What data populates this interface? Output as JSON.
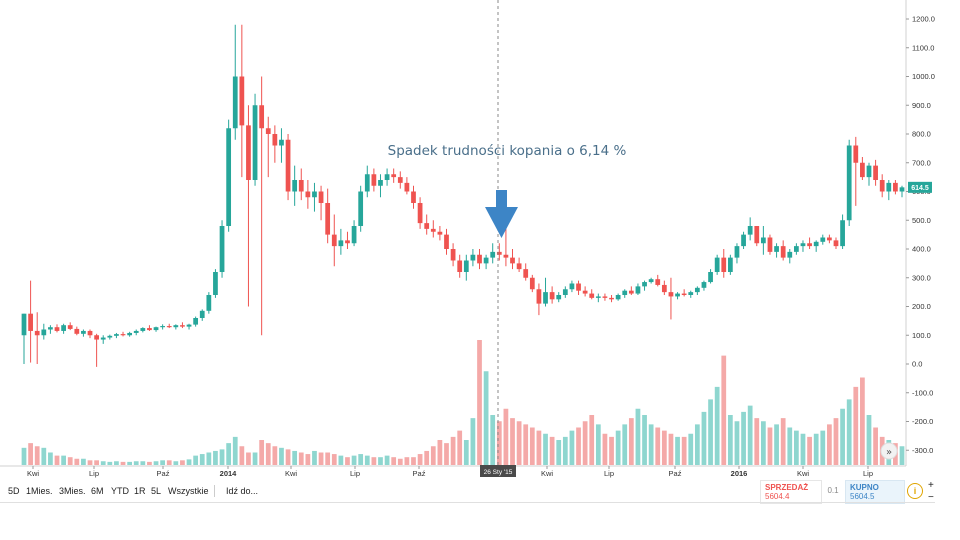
{
  "chart_data": {
    "type": "candlestick",
    "y_ticks": [
      "1200.0",
      "1100.0",
      "1000.0",
      "900.0",
      "800.0",
      "700.0",
      "600.0",
      "500.0",
      "400.0",
      "300.0",
      "200.0",
      "100.0",
      "0.0",
      "-100.0",
      "-200.0",
      "-300.0"
    ],
    "x_ticks": [
      "Kwi",
      "Lip",
      "Paź",
      "2014",
      "Kwi",
      "Lip",
      "Paź",
      "Kwi",
      "Lip",
      "Paź",
      "2016",
      "Kwi",
      "Lip"
    ],
    "x_ticks_bold": [
      false,
      false,
      false,
      true,
      false,
      false,
      false,
      false,
      false,
      false,
      true,
      false,
      false
    ],
    "crosshair_label": "26 Sty '15",
    "current_price_label": "614.5",
    "annotation": "Spadek trudności kopania o 6,14 %",
    "ohlc": [
      [
        100,
        175,
        0,
        175
      ],
      [
        175,
        290,
        5,
        115
      ],
      [
        115,
        180,
        0,
        100
      ],
      [
        100,
        140,
        85,
        120
      ],
      [
        120,
        135,
        105,
        128
      ],
      [
        128,
        138,
        110,
        115
      ],
      [
        115,
        140,
        105,
        135
      ],
      [
        135,
        145,
        118,
        122
      ],
      [
        122,
        130,
        100,
        105
      ],
      [
        105,
        120,
        95,
        115
      ],
      [
        115,
        120,
        90,
        100
      ],
      [
        100,
        105,
        -10,
        85
      ],
      [
        85,
        100,
        70,
        92
      ],
      [
        92,
        102,
        85,
        98
      ],
      [
        98,
        108,
        90,
        104
      ],
      [
        104,
        112,
        96,
        100
      ],
      [
        100,
        112,
        95,
        108
      ],
      [
        108,
        120,
        100,
        115
      ],
      [
        115,
        128,
        110,
        125
      ],
      [
        125,
        135,
        115,
        118
      ],
      [
        118,
        130,
        112,
        128
      ],
      [
        128,
        138,
        120,
        132
      ],
      [
        132,
        140,
        125,
        128
      ],
      [
        128,
        138,
        120,
        135
      ],
      [
        135,
        145,
        125,
        130
      ],
      [
        130,
        140,
        120,
        137
      ],
      [
        137,
        165,
        130,
        160
      ],
      [
        160,
        190,
        150,
        185
      ],
      [
        185,
        250,
        175,
        240
      ],
      [
        240,
        330,
        230,
        320
      ],
      [
        320,
        500,
        300,
        480
      ],
      [
        480,
        850,
        460,
        820
      ],
      [
        820,
        1180,
        780,
        1000
      ],
      [
        1000,
        1180,
        650,
        830
      ],
      [
        830,
        900,
        200,
        640
      ],
      [
        640,
        940,
        620,
        900
      ],
      [
        900,
        1000,
        100,
        820
      ],
      [
        820,
        860,
        650,
        800
      ],
      [
        800,
        830,
        700,
        760
      ],
      [
        760,
        820,
        700,
        780
      ],
      [
        780,
        800,
        570,
        600
      ],
      [
        600,
        690,
        550,
        640
      ],
      [
        640,
        680,
        570,
        600
      ],
      [
        600,
        640,
        540,
        580
      ],
      [
        580,
        630,
        530,
        600
      ],
      [
        600,
        620,
        500,
        560
      ],
      [
        560,
        610,
        420,
        450
      ],
      [
        450,
        520,
        340,
        410
      ],
      [
        410,
        470,
        380,
        430
      ],
      [
        430,
        460,
        400,
        420
      ],
      [
        420,
        500,
        410,
        480
      ],
      [
        480,
        620,
        460,
        600
      ],
      [
        600,
        690,
        580,
        660
      ],
      [
        660,
        680,
        600,
        620
      ],
      [
        620,
        660,
        580,
        640
      ],
      [
        640,
        680,
        620,
        660
      ],
      [
        660,
        680,
        630,
        650
      ],
      [
        650,
        670,
        610,
        630
      ],
      [
        630,
        650,
        590,
        600
      ],
      [
        600,
        620,
        540,
        560
      ],
      [
        560,
        580,
        470,
        490
      ],
      [
        490,
        520,
        450,
        470
      ],
      [
        470,
        500,
        440,
        460
      ],
      [
        460,
        480,
        430,
        450
      ],
      [
        450,
        470,
        380,
        400
      ],
      [
        400,
        420,
        340,
        360
      ],
      [
        360,
        380,
        300,
        320
      ],
      [
        320,
        380,
        290,
        360
      ],
      [
        360,
        400,
        340,
        380
      ],
      [
        380,
        400,
        330,
        350
      ],
      [
        350,
        380,
        330,
        370
      ],
      [
        370,
        420,
        350,
        390
      ],
      [
        390,
        420,
        360,
        380
      ],
      [
        380,
        480,
        340,
        370
      ],
      [
        370,
        400,
        330,
        350
      ],
      [
        350,
        370,
        320,
        330
      ],
      [
        330,
        350,
        290,
        300
      ],
      [
        300,
        310,
        250,
        260
      ],
      [
        260,
        280,
        170,
        210
      ],
      [
        210,
        300,
        200,
        250
      ],
      [
        250,
        270,
        210,
        225
      ],
      [
        225,
        250,
        215,
        240
      ],
      [
        240,
        270,
        230,
        260
      ],
      [
        260,
        290,
        250,
        280
      ],
      [
        280,
        290,
        240,
        255
      ],
      [
        255,
        270,
        235,
        245
      ],
      [
        245,
        260,
        225,
        230
      ],
      [
        230,
        245,
        215,
        235
      ],
      [
        235,
        245,
        220,
        230
      ],
      [
        230,
        240,
        215,
        225
      ],
      [
        225,
        245,
        220,
        240
      ],
      [
        240,
        260,
        230,
        255
      ],
      [
        255,
        270,
        240,
        245
      ],
      [
        245,
        280,
        240,
        270
      ],
      [
        270,
        290,
        255,
        285
      ],
      [
        285,
        300,
        280,
        295
      ],
      [
        295,
        310,
        270,
        275
      ],
      [
        275,
        290,
        240,
        250
      ],
      [
        250,
        300,
        155,
        235
      ],
      [
        235,
        250,
        225,
        245
      ],
      [
        245,
        260,
        235,
        240
      ],
      [
        240,
        255,
        230,
        250
      ],
      [
        250,
        270,
        240,
        265
      ],
      [
        265,
        290,
        255,
        285
      ],
      [
        285,
        330,
        280,
        320
      ],
      [
        320,
        380,
        310,
        370
      ],
      [
        370,
        400,
        300,
        320
      ],
      [
        320,
        380,
        310,
        370
      ],
      [
        370,
        420,
        350,
        410
      ],
      [
        410,
        460,
        400,
        450
      ],
      [
        450,
        510,
        430,
        480
      ],
      [
        480,
        470,
        410,
        420
      ],
      [
        420,
        480,
        380,
        440
      ],
      [
        440,
        450,
        380,
        390
      ],
      [
        390,
        420,
        370,
        410
      ],
      [
        410,
        430,
        360,
        370
      ],
      [
        370,
        400,
        350,
        390
      ],
      [
        390,
        420,
        380,
        410
      ],
      [
        410,
        430,
        390,
        420
      ],
      [
        420,
        440,
        400,
        410
      ],
      [
        410,
        430,
        390,
        425
      ],
      [
        425,
        450,
        415,
        440
      ],
      [
        440,
        450,
        420,
        430
      ],
      [
        430,
        440,
        400,
        410
      ],
      [
        410,
        520,
        400,
        500
      ],
      [
        500,
        780,
        480,
        760
      ],
      [
        760,
        790,
        550,
        700
      ],
      [
        700,
        720,
        640,
        650
      ],
      [
        650,
        700,
        620,
        690
      ],
      [
        690,
        710,
        620,
        640
      ],
      [
        640,
        660,
        580,
        600
      ],
      [
        600,
        640,
        570,
        630
      ],
      [
        630,
        640,
        590,
        600
      ],
      [
        600,
        620,
        580,
        614.5
      ]
    ],
    "volume": [
      55,
      70,
      60,
      55,
      40,
      30,
      30,
      25,
      20,
      20,
      15,
      15,
      12,
      10,
      12,
      10,
      10,
      12,
      12,
      10,
      12,
      15,
      15,
      12,
      15,
      18,
      30,
      35,
      40,
      45,
      50,
      70,
      90,
      60,
      40,
      40,
      80,
      70,
      60,
      55,
      50,
      45,
      40,
      35,
      45,
      40,
      40,
      35,
      30,
      25,
      30,
      35,
      30,
      25,
      25,
      30,
      25,
      20,
      25,
      25,
      35,
      45,
      60,
      80,
      70,
      90,
      110,
      80,
      150,
      400,
      300,
      160,
      140,
      180,
      150,
      140,
      130,
      120,
      110,
      100,
      90,
      80,
      90,
      110,
      120,
      140,
      160,
      130,
      100,
      90,
      110,
      130,
      150,
      180,
      160,
      130,
      120,
      110,
      100,
      90,
      90,
      100,
      130,
      170,
      210,
      250,
      350,
      160,
      140,
      170,
      190,
      150,
      140,
      120,
      130,
      150,
      120,
      110,
      100,
      90,
      100,
      110,
      130,
      150,
      180,
      210,
      250,
      280,
      160,
      120,
      90,
      80,
      70,
      60,
      50,
      45,
      40
    ]
  },
  "toolbar": {
    "timeframes": [
      "5D",
      "1Mies.",
      "3Mies.",
      "6M",
      "YTD",
      "1R",
      "5L",
      "Wszystkie"
    ],
    "goto_label": "Idź do..."
  },
  "trade": {
    "sell_label": "SPRZEDAŻ",
    "sell_value": "5604.4",
    "spread_value": "0.1",
    "buy_label": "KUPNO",
    "buy_value": "5604.5"
  },
  "colors": {
    "up": "#26a69a",
    "down": "#ef5350",
    "up_volume": "#8ed6cf",
    "down_volume": "#f4a9a8",
    "arrow": "#3d85c6",
    "current_price_bg": "#26a69a"
  }
}
